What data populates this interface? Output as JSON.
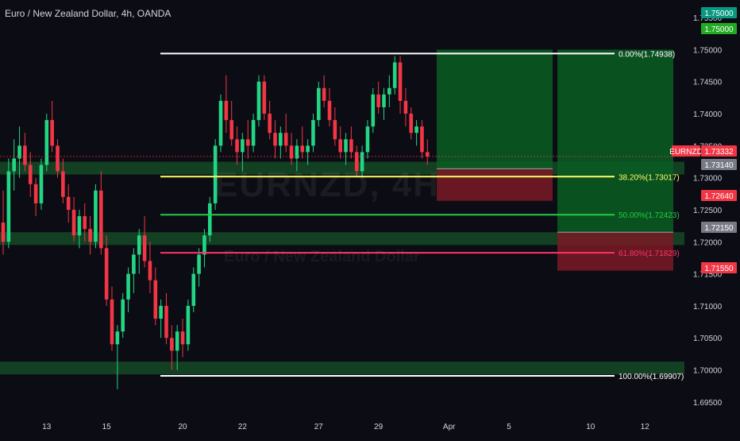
{
  "header": {
    "title": "Euro / New Zealand Dollar, 4h, OANDA"
  },
  "watermark": {
    "main": "EURNZD, 4H",
    "sub": "Euro / New Zealand Dollar"
  },
  "chart_data": {
    "type": "candlestick",
    "symbol": "EURNZD",
    "interval": "4h",
    "broker": "OANDA",
    "ylim": [
      1.693,
      1.7565
    ],
    "y_ticks": [
      "1.75500",
      "1.75000",
      "1.74500",
      "1.74000",
      "1.73500",
      "1.73000",
      "1.72500",
      "1.72000",
      "1.71500",
      "1.71000",
      "1.70500",
      "1.70000",
      "1.69500"
    ],
    "x_ticks": [
      {
        "label": "13",
        "i": 8
      },
      {
        "label": "15",
        "i": 19
      },
      {
        "label": "20",
        "i": 33
      },
      {
        "label": "22",
        "i": 44
      },
      {
        "label": "27",
        "i": 58
      },
      {
        "label": "29",
        "i": 69
      },
      {
        "label": "Apr",
        "i": 82
      },
      {
        "label": "5",
        "i": 93
      },
      {
        "label": "10",
        "i": 108
      },
      {
        "label": "12",
        "i": 118
      }
    ],
    "candles": [
      [
        1.723,
        1.728,
        1.718,
        1.72
      ],
      [
        1.72,
        1.733,
        1.719,
        1.731
      ],
      [
        1.731,
        1.736,
        1.728,
        1.733
      ],
      [
        1.733,
        1.738,
        1.73,
        1.735
      ],
      [
        1.735,
        1.737,
        1.731,
        1.732
      ],
      [
        1.732,
        1.734,
        1.727,
        1.729
      ],
      [
        1.729,
        1.73,
        1.724,
        1.726
      ],
      [
        1.726,
        1.733,
        1.725,
        1.732
      ],
      [
        1.732,
        1.74,
        1.731,
        1.739
      ],
      [
        1.739,
        1.742,
        1.734,
        1.735
      ],
      [
        1.735,
        1.736,
        1.73,
        1.731
      ],
      [
        1.731,
        1.733,
        1.726,
        1.727
      ],
      [
        1.727,
        1.729,
        1.723,
        1.725
      ],
      [
        1.725,
        1.727,
        1.72,
        1.721
      ],
      [
        1.721,
        1.725,
        1.719,
        1.724
      ],
      [
        1.724,
        1.726,
        1.72,
        1.722
      ],
      [
        1.722,
        1.724,
        1.718,
        1.72
      ],
      [
        1.72,
        1.729,
        1.719,
        1.728
      ],
      [
        1.728,
        1.731,
        1.718,
        1.719
      ],
      [
        1.719,
        1.721,
        1.71,
        1.711
      ],
      [
        1.711,
        1.713,
        1.703,
        1.704
      ],
      [
        1.704,
        1.707,
        1.697,
        1.706
      ],
      [
        1.706,
        1.712,
        1.705,
        1.711
      ],
      [
        1.711,
        1.716,
        1.709,
        1.715
      ],
      [
        1.715,
        1.719,
        1.712,
        1.718
      ],
      [
        1.718,
        1.722,
        1.715,
        1.721
      ],
      [
        1.721,
        1.724,
        1.716,
        1.717
      ],
      [
        1.717,
        1.72,
        1.712,
        1.714
      ],
      [
        1.714,
        1.716,
        1.707,
        1.708
      ],
      [
        1.708,
        1.711,
        1.705,
        1.71
      ],
      [
        1.71,
        1.712,
        1.704,
        1.705
      ],
      [
        1.705,
        1.707,
        1.7,
        1.703
      ],
      [
        1.703,
        1.707,
        1.7,
        1.706
      ],
      [
        1.706,
        1.708,
        1.702,
        1.704
      ],
      [
        1.704,
        1.711,
        1.703,
        1.71
      ],
      [
        1.71,
        1.716,
        1.709,
        1.715
      ],
      [
        1.715,
        1.719,
        1.713,
        1.718
      ],
      [
        1.718,
        1.722,
        1.716,
        1.721
      ],
      [
        1.721,
        1.727,
        1.72,
        1.726
      ],
      [
        1.726,
        1.736,
        1.725,
        1.735
      ],
      [
        1.735,
        1.743,
        1.734,
        1.742
      ],
      [
        1.742,
        1.746,
        1.737,
        1.739
      ],
      [
        1.739,
        1.742,
        1.735,
        1.736
      ],
      [
        1.736,
        1.738,
        1.732,
        1.734
      ],
      [
        1.734,
        1.737,
        1.731,
        1.736
      ],
      [
        1.736,
        1.739,
        1.733,
        1.735
      ],
      [
        1.735,
        1.74,
        1.734,
        1.739
      ],
      [
        1.739,
        1.746,
        1.738,
        1.745
      ],
      [
        1.745,
        1.746,
        1.739,
        1.74
      ],
      [
        1.74,
        1.742,
        1.736,
        1.737
      ],
      [
        1.737,
        1.739,
        1.733,
        1.735
      ],
      [
        1.735,
        1.738,
        1.733,
        1.737
      ],
      [
        1.737,
        1.74,
        1.734,
        1.735
      ],
      [
        1.735,
        1.737,
        1.732,
        1.733
      ],
      [
        1.733,
        1.736,
        1.731,
        1.735
      ],
      [
        1.735,
        1.738,
        1.733,
        1.734
      ],
      [
        1.734,
        1.736,
        1.732,
        1.735
      ],
      [
        1.735,
        1.74,
        1.734,
        1.739
      ],
      [
        1.739,
        1.745,
        1.738,
        1.744
      ],
      [
        1.744,
        1.746,
        1.741,
        1.742
      ],
      [
        1.742,
        1.744,
        1.738,
        1.739
      ],
      [
        1.739,
        1.741,
        1.735,
        1.736
      ],
      [
        1.736,
        1.738,
        1.733,
        1.734
      ],
      [
        1.734,
        1.737,
        1.732,
        1.736
      ],
      [
        1.736,
        1.738,
        1.733,
        1.734
      ],
      [
        1.734,
        1.735,
        1.73,
        1.731
      ],
      [
        1.731,
        1.735,
        1.73,
        1.734
      ],
      [
        1.734,
        1.739,
        1.733,
        1.738
      ],
      [
        1.738,
        1.744,
        1.737,
        1.743
      ],
      [
        1.743,
        1.745,
        1.74,
        1.741
      ],
      [
        1.741,
        1.744,
        1.739,
        1.743
      ],
      [
        1.743,
        1.746,
        1.741,
        1.744
      ],
      [
        1.744,
        1.749,
        1.743,
        1.748
      ],
      [
        1.748,
        1.749,
        1.74,
        1.742
      ],
      [
        1.742,
        1.744,
        1.738,
        1.74
      ],
      [
        1.74,
        1.741,
        1.736,
        1.737
      ],
      [
        1.737,
        1.739,
        1.735,
        1.738
      ],
      [
        1.738,
        1.739,
        1.733,
        1.734
      ],
      [
        1.734,
        1.736,
        1.732,
        1.7333
      ]
    ],
    "levels": [
      {
        "label": "0.00%(1.74938)",
        "value": 1.74938,
        "color": "#ffffff"
      },
      {
        "label": "38.20%(1.73017)",
        "value": 1.73017,
        "color": "#ffff66"
      },
      {
        "label": "50.00%(1.72423)",
        "value": 1.72423,
        "color": "#22cc44"
      },
      {
        "label": "61.80%(1.71829)",
        "value": 1.71829,
        "color": "#ff3366"
      },
      {
        "label": "100.00%(1.69907)",
        "value": 1.69907,
        "color": "#ffffff"
      }
    ],
    "zones": [
      {
        "name": "resistance-zone",
        "from": 1.7305,
        "to": 1.7325
      },
      {
        "name": "mid-zone",
        "from": 1.7195,
        "to": 1.7215
      },
      {
        "name": "support-zone",
        "from": 1.6993,
        "to": 1.7013
      }
    ],
    "positions": [
      {
        "name": "position-1",
        "target": 1.75,
        "entry": 1.7314,
        "stop": 1.7264
      },
      {
        "name": "position-2",
        "target": 1.75,
        "entry": 1.7215,
        "stop": 1.7155
      }
    ],
    "price_badges": [
      {
        "label": "1.75000",
        "value": 1.75,
        "color": "#089981"
      },
      {
        "label": "1.75000",
        "value": 1.75,
        "color": "#22aa22"
      },
      {
        "label": "EURNZD",
        "value": 1.73332,
        "color": "#f23645"
      },
      {
        "label": "1.73332",
        "value": 1.73332,
        "color": "#f23645"
      },
      {
        "label": "1.73140",
        "value": 1.7314,
        "color": "#787b86"
      },
      {
        "label": "1.72640",
        "value": 1.7264,
        "color": "#f23645"
      },
      {
        "label": "1.72150",
        "value": 1.7215,
        "color": "#787b86"
      },
      {
        "label": "1.71550",
        "value": 1.7155,
        "color": "#f23645"
      }
    ],
    "last_price": 1.73332,
    "colors": {
      "bull": "#22d684",
      "bear": "#f23645",
      "target_zone": "#0b5e22",
      "stop_zone": "#7a1a24",
      "horizontal_zone": "#1a6a2e",
      "text": "#d1d4dc"
    }
  }
}
